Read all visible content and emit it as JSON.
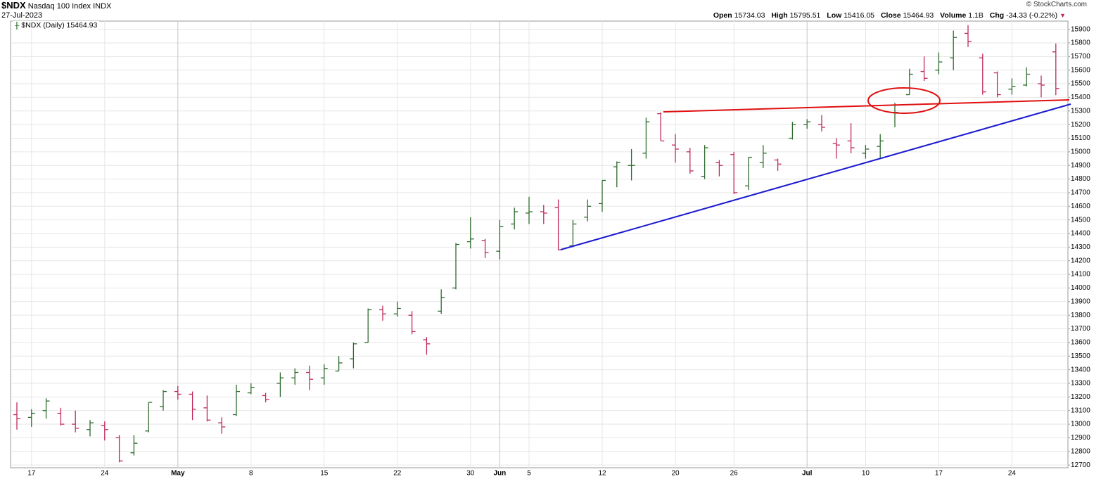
{
  "chart_data": {
    "type": "ohlc",
    "symbol": "$NDX",
    "name": "Nasdaq 100 Index",
    "exchange": "INDX",
    "date": "27-Jul-2023",
    "copyright": "© StockCharts.com",
    "legend": "$NDX (Daily)",
    "labels": {
      "open": "Open",
      "high": "High",
      "low": "Low",
      "close": "Close",
      "volume": "Volume",
      "change": "Chg"
    },
    "volume": {
      "value": 1100000000,
      "label": "1.1B"
    },
    "change": {
      "value": -34.33,
      "label": "-34.33 (-0.22%)"
    },
    "up_color": "#2e6b2e",
    "down_color": "#c0285a",
    "grid": true,
    "categories": [
      null,
      "17",
      null,
      null,
      null,
      null,
      "24",
      null,
      null,
      null,
      null,
      "May",
      null,
      null,
      null,
      null,
      "8",
      null,
      null,
      null,
      null,
      "15",
      null,
      null,
      null,
      null,
      "22",
      null,
      null,
      null,
      null,
      "30",
      null,
      "Jun",
      null,
      "5",
      null,
      null,
      null,
      null,
      "12",
      null,
      null,
      null,
      null,
      "20",
      null,
      null,
      null,
      "26",
      null,
      null,
      null,
      null,
      "Jul",
      null,
      null,
      null,
      "10",
      null,
      null,
      null,
      null,
      "17",
      null,
      null,
      null,
      null,
      "24",
      null,
      null,
      null
    ],
    "open": [
      13070,
      13050,
      13100,
      13080,
      13000,
      12960,
      12990,
      12900,
      12790,
      12950,
      13130,
      13240,
      13220,
      13120,
      13010,
      13070,
      13230,
      13210,
      13300,
      13340,
      13380,
      13340,
      13390,
      13480,
      13600,
      13840,
      13810,
      13800,
      13620,
      13830,
      14000,
      14340,
      14350,
      14270,
      14470,
      14550,
      14560,
      14590,
      14310,
      14520,
      14620,
      14890,
      14900,
      14990,
      15280,
      15050,
      15000,
      14820,
      14920,
      14980,
      14750,
      14920,
      14940,
      15100,
      15200,
      15200,
      15060,
      15080,
      14990,
      15040,
      15290,
      15420,
      15590,
      15600,
      15690,
      15870,
      15690,
      15580,
      15460,
      15490,
      15500,
      15734.03
    ],
    "high": [
      13160,
      13110,
      13190,
      13120,
      13100,
      13030,
      13020,
      12920,
      12920,
      13160,
      13250,
      13280,
      13240,
      13210,
      13050,
      13290,
      13300,
      13230,
      13380,
      13410,
      13430,
      13440,
      13500,
      13600,
      13850,
      13870,
      13900,
      13830,
      13640,
      13990,
      14330,
      14520,
      14360,
      14500,
      14590,
      14670,
      14610,
      14650,
      14500,
      14650,
      14790,
      14930,
      15020,
      15250,
      15290,
      15130,
      15030,
      15050,
      14940,
      15000,
      14960,
      15050,
      14950,
      15220,
      15240,
      15270,
      15100,
      15210,
      15050,
      15130,
      15360,
      15610,
      15700,
      15730,
      15890,
      15930,
      15720,
      15590,
      15540,
      15620,
      15560,
      15795.51
    ],
    "low": [
      12960,
      12980,
      13040,
      12990,
      12940,
      12910,
      12880,
      12720,
      12770,
      12940,
      13100,
      13180,
      13030,
      13020,
      12930,
      13060,
      13220,
      13160,
      13200,
      13290,
      13250,
      13290,
      13390,
      13410,
      13600,
      13760,
      13790,
      13660,
      13510,
      13810,
      13990,
      14290,
      14220,
      14210,
      14430,
      14470,
      14470,
      14280,
      14300,
      14490,
      14560,
      14740,
      14790,
      14950,
      15080,
      14920,
      14840,
      14800,
      14820,
      14690,
      14720,
      14880,
      14860,
      15090,
      15170,
      15150,
      14950,
      14990,
      14950,
      14950,
      15180,
      15420,
      15520,
      15570,
      15600,
      15770,
      15420,
      15400,
      15420,
      15480,
      15400,
      15416.05
    ],
    "close": [
      13040,
      13080,
      13170,
      13000,
      12970,
      13010,
      12960,
      12730,
      12860,
      13160,
      13240,
      13220,
      13110,
      13030,
      12980,
      13240,
      13270,
      13180,
      13340,
      13380,
      13330,
      13410,
      13450,
      13590,
      13840,
      13810,
      13850,
      13680,
      13590,
      13930,
      14320,
      14360,
      14260,
      14450,
      14560,
      14560,
      14550,
      14280,
      14470,
      14600,
      14790,
      14920,
      14900,
      15220,
      15080,
      15020,
      14860,
      15030,
      14900,
      14700,
      14960,
      14990,
      14910,
      15200,
      15220,
      15180,
      15050,
      15030,
      15020,
      15080,
      15290,
      15570,
      15540,
      15660,
      15840,
      15810,
      15440,
      15420,
      15480,
      15570,
      15490,
      15464.93
    ],
    "ylim": [
      12680,
      15960
    ],
    "yticks": [
      12700,
      12800,
      12900,
      13000,
      13100,
      13200,
      13300,
      13400,
      13500,
      13600,
      13700,
      13800,
      13900,
      14000,
      14100,
      14200,
      14300,
      14400,
      14500,
      14600,
      14700,
      14800,
      14900,
      15000,
      15100,
      15200,
      15300,
      15400,
      15500,
      15600,
      15700,
      15800,
      15900
    ]
  }
}
